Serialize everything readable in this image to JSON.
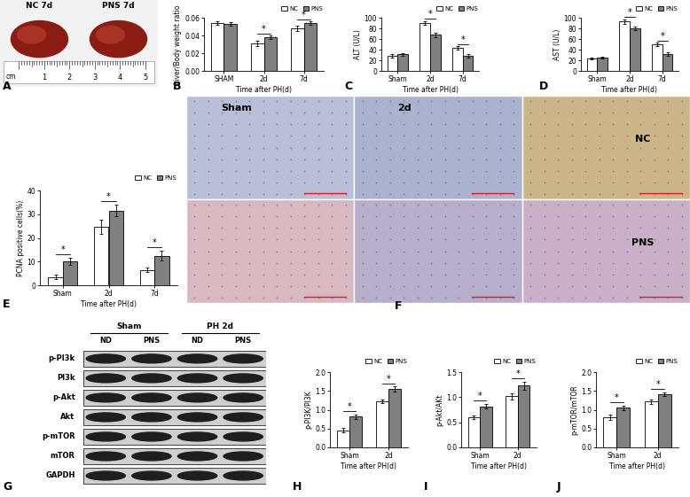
{
  "chart_data": [
    {
      "panel": "B",
      "type": "bar",
      "y_label": "Liver/Body weight ratio",
      "x_label": "Time after PH(d)",
      "categories": [
        "SHAM",
        "2d",
        "7d"
      ],
      "series": [
        {
          "name": "NC",
          "color": "#ffffff",
          "values": [
            0.054,
            0.031,
            0.048
          ],
          "errors": [
            0.002,
            0.003,
            0.003
          ]
        },
        {
          "name": "PNS",
          "color": "#808080",
          "values": [
            0.053,
            0.038,
            0.054
          ],
          "errors": [
            0.002,
            0.002,
            0.002
          ]
        }
      ],
      "ylim": [
        0,
        0.06
      ],
      "yticks": [
        {
          "value": 0,
          "label": "0.00"
        },
        0.02,
        0.04,
        0.06
      ],
      "annotations": [
        {
          "category": "2d",
          "text": "*"
        },
        {
          "category": "7d",
          "text": "*"
        }
      ],
      "legend": "upper right"
    },
    {
      "panel": "C",
      "type": "bar",
      "y_label": "ALT (U/L)",
      "x_label": "Time after PH(d)",
      "categories": [
        "Sham",
        "2d",
        "7d"
      ],
      "series": [
        {
          "name": "NC",
          "color": "#ffffff",
          "values": [
            28,
            90,
            43
          ],
          "errors": [
            3,
            4,
            3
          ]
        },
        {
          "name": "PNS",
          "color": "#808080",
          "values": [
            31,
            68,
            28
          ],
          "errors": [
            2,
            4,
            3
          ]
        }
      ],
      "ylim": [
        0,
        100
      ],
      "yticks": [
        0,
        20,
        40,
        60,
        80,
        100
      ],
      "annotations": [
        {
          "category": "2d",
          "text": "*"
        },
        {
          "category": "7d",
          "text": "*"
        }
      ],
      "legend": "upper right"
    },
    {
      "panel": "D",
      "type": "bar",
      "y_label": "AST (U/L)",
      "x_label": "Time after PH(d)",
      "categories": [
        "Sham",
        "2d",
        "7d"
      ],
      "series": [
        {
          "name": "NC",
          "color": "#ffffff",
          "values": [
            23,
            93,
            50
          ],
          "errors": [
            2,
            4,
            3
          ]
        },
        {
          "name": "PNS",
          "color": "#808080",
          "values": [
            25,
            80,
            32
          ],
          "errors": [
            2,
            4,
            3
          ]
        }
      ],
      "ylim": [
        0,
        100
      ],
      "yticks": [
        0,
        20,
        40,
        60,
        80,
        100
      ],
      "annotations": [
        {
          "category": "2d",
          "text": "*"
        },
        {
          "category": "7d",
          "text": "*"
        }
      ],
      "legend": "upper right"
    },
    {
      "panel": "E",
      "type": "bar",
      "y_label": "PCNA positive cells(%)",
      "x_label": "Time after PH(d)",
      "categories": [
        "Sham",
        "2d",
        "7d"
      ],
      "series": [
        {
          "name": "NC",
          "color": "#ffffff",
          "values": [
            3.5,
            24.5,
            6.5
          ],
          "errors": [
            0.8,
            3,
            0.8
          ]
        },
        {
          "name": "PNS",
          "color": "#808080",
          "values": [
            10,
            31.5,
            12.5
          ],
          "errors": [
            1.5,
            2.5,
            2
          ]
        }
      ],
      "ylim": [
        0,
        40
      ],
      "yticks": [
        0,
        10,
        20,
        30,
        40
      ],
      "annotations": [
        {
          "category": "Sham",
          "text": "*"
        },
        {
          "category": "2d",
          "text": "*"
        },
        {
          "category": "7d",
          "text": "*"
        }
      ],
      "legend": "upper right"
    },
    {
      "panel": "H",
      "type": "bar",
      "y_label": "p-PI3K/PI3K",
      "x_label": "Time after PH(d)",
      "categories": [
        "Sham",
        "2d"
      ],
      "series": [
        {
          "name": "NC",
          "color": "#ffffff",
          "values": [
            0.45,
            1.22
          ],
          "errors": [
            0.06,
            0.05
          ]
        },
        {
          "name": "PNS",
          "color": "#808080",
          "values": [
            0.82,
            1.55
          ],
          "errors": [
            0.06,
            0.07
          ]
        }
      ],
      "ylim": [
        0,
        2.0
      ],
      "yticks": [
        {
          "value": 0,
          "label": "0.0"
        },
        0.5,
        {
          "value": 1,
          "label": "1.0"
        },
        1.5,
        {
          "value": 2,
          "label": "2.0"
        }
      ],
      "annotations": [
        {
          "category": "Sham",
          "text": "*"
        },
        {
          "category": "2d",
          "text": "*"
        }
      ],
      "legend": "upper right"
    },
    {
      "panel": "I",
      "type": "bar",
      "y_label": "p-Akt/AKt",
      "x_label": "Time after PH(d)",
      "categories": [
        "Sham",
        "2d"
      ],
      "series": [
        {
          "name": "NC",
          "color": "#ffffff",
          "values": [
            0.6,
            1.02
          ],
          "errors": [
            0.04,
            0.06
          ]
        },
        {
          "name": "PNS",
          "color": "#808080",
          "values": [
            0.82,
            1.23
          ],
          "errors": [
            0.05,
            0.08
          ]
        }
      ],
      "ylim": [
        0,
        1.5
      ],
      "yticks": [
        {
          "value": 0,
          "label": "0.0"
        },
        0.5,
        {
          "value": 1,
          "label": "1.0"
        },
        1.5
      ],
      "annotations": [
        {
          "category": "Sham",
          "text": "*"
        },
        {
          "category": "2d",
          "text": "*"
        }
      ],
      "legend": "upper right"
    },
    {
      "panel": "J",
      "type": "bar",
      "y_label": "p-mTOR/mTOR",
      "x_label": "Time after PH(d)",
      "categories": [
        "Sham",
        "2d"
      ],
      "series": [
        {
          "name": "NC",
          "color": "#ffffff",
          "values": [
            0.8,
            1.22
          ],
          "errors": [
            0.08,
            0.06
          ]
        },
        {
          "name": "PNS",
          "color": "#808080",
          "values": [
            1.05,
            1.42
          ],
          "errors": [
            0.06,
            0.05
          ]
        }
      ],
      "ylim": [
        0,
        2.0
      ],
      "yticks": [
        {
          "value": 0,
          "label": "0.0"
        },
        0.5,
        {
          "value": 1,
          "label": "1.0"
        },
        1.5,
        {
          "value": 2,
          "label": "2.0"
        }
      ],
      "annotations": [
        {
          "category": "Sham",
          "text": "*"
        },
        {
          "category": "2d",
          "text": "*"
        }
      ],
      "legend": "upper right"
    }
  ],
  "photo": {
    "panel": "A",
    "labels": [
      "NC 7d",
      "PNS 7d"
    ],
    "ruler": {
      "unit": "cm",
      "marks": [
        1,
        2,
        3,
        4,
        5
      ]
    }
  },
  "histology": {
    "panel": "F",
    "columns": [
      "Sham",
      "2d"
    ],
    "rows": [
      "NC",
      "PNS"
    ]
  },
  "western_blot": {
    "panel": "G",
    "groups": [
      "Sham",
      "PH 2d"
    ],
    "lanes": [
      "ND",
      "PNS",
      "ND",
      "PNS"
    ],
    "rows": [
      "p-PI3k",
      "PI3k",
      "p-Akt",
      "Akt",
      "p-mTOR",
      "mTOR",
      "GAPDH"
    ]
  }
}
